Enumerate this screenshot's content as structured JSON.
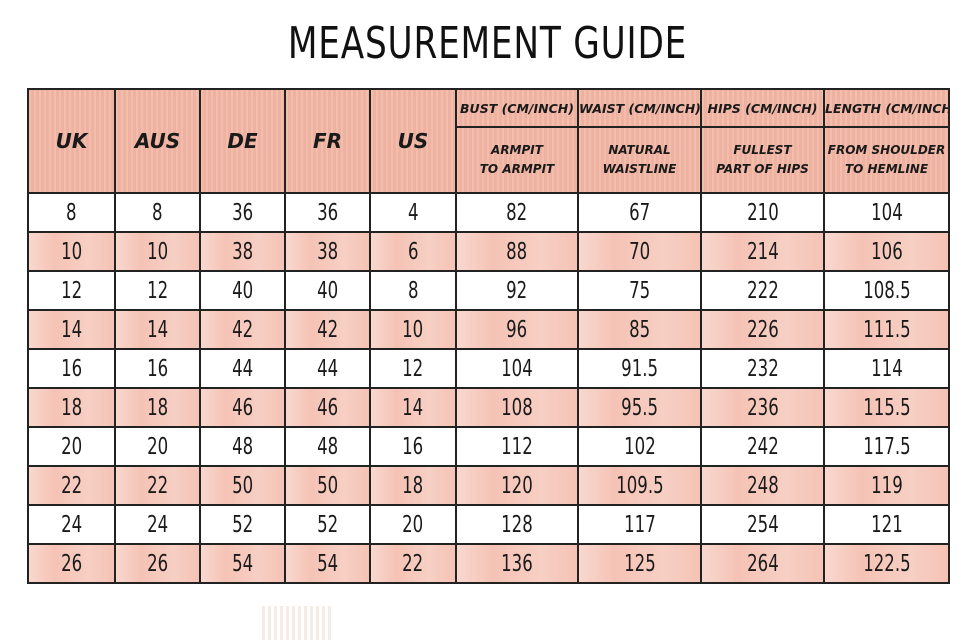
{
  "title": "MEASUREMENT GUIDE",
  "size_columns": [
    "UK",
    "AUS",
    "DE",
    "FR",
    "US"
  ],
  "measure_columns": [
    {
      "label": "BUST (CM/INCH)",
      "sub_line1": "ARMPIT",
      "sub_line2": "TO ARMPIT"
    },
    {
      "label": "WAIST (CM/INCH)",
      "sub_line1": "NATURAL",
      "sub_line2": "WAISTLINE"
    },
    {
      "label": "HIPS (CM/INCH)",
      "sub_line1": "FULLEST",
      "sub_line2": "PART OF HIPS"
    },
    {
      "label": "LENGTH (CM/INCH)",
      "sub_line1": "FROM SHOULDER",
      "sub_line2": "TO HEMLINE"
    }
  ],
  "rows": [
    [
      "8",
      "8",
      "36",
      "36",
      "4",
      "82",
      "67",
      "210",
      "104"
    ],
    [
      "10",
      "10",
      "38",
      "38",
      "6",
      "88",
      "70",
      "214",
      "106"
    ],
    [
      "12",
      "12",
      "40",
      "40",
      "8",
      "92",
      "75",
      "222",
      "108.5"
    ],
    [
      "14",
      "14",
      "42",
      "42",
      "10",
      "96",
      "85",
      "226",
      "111.5"
    ],
    [
      "16",
      "16",
      "44",
      "44",
      "12",
      "104",
      "91.5",
      "232",
      "114"
    ],
    [
      "18",
      "18",
      "46",
      "46",
      "14",
      "108",
      "95.5",
      "236",
      "115.5"
    ],
    [
      "20",
      "20",
      "48",
      "48",
      "16",
      "112",
      "102",
      "242",
      "117.5"
    ],
    [
      "22",
      "22",
      "50",
      "50",
      "18",
      "120",
      "109.5",
      "248",
      "119"
    ],
    [
      "24",
      "24",
      "52",
      "52",
      "20",
      "128",
      "117",
      "254",
      "121"
    ],
    [
      "26",
      "26",
      "54",
      "54",
      "22",
      "136",
      "125",
      "264",
      "122.5"
    ]
  ],
  "colors": {
    "header_bg": "#f2b6a4",
    "shaded_row_bg": "#f5c3b5",
    "plain_row_bg": "#ffffff",
    "border": "#222222"
  }
}
